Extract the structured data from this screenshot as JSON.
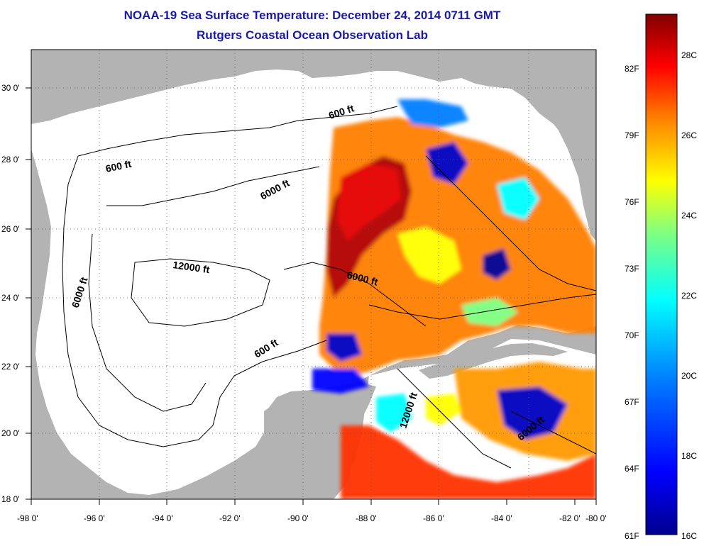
{
  "title": {
    "line1": "NOAA-19 Sea Surface Temperature:  December 24, 2014 0711 GMT",
    "line2": "Rutgers Coastal Ocean Observation Lab"
  },
  "map": {
    "lon_labels": [
      "-98 0'",
      "-96 0'",
      "-94 0'",
      "-92 0'",
      "-90 0'",
      "-88 0'",
      "-86 0'",
      "-84 0'",
      "-82 0'",
      "-80 0'"
    ],
    "lat_labels": [
      "30 0'",
      "28 0'",
      "26 0'",
      "24 0'",
      "22 0'",
      "20 0'",
      "18 0'"
    ],
    "contour_labels": [
      {
        "id": "c600-north",
        "text": "600 ft"
      },
      {
        "id": "c600-west",
        "text": "600 ft"
      },
      {
        "id": "c6000-mid",
        "text": "6000 ft"
      },
      {
        "id": "c12000",
        "text": "12000 ft"
      },
      {
        "id": "c6000-east",
        "text": "6000 ft"
      },
      {
        "id": "c6000-west",
        "text": "6000 ft"
      },
      {
        "id": "c600-south",
        "text": "600 ft"
      },
      {
        "id": "c12000-south",
        "text": "12000 ft"
      },
      {
        "id": "c6000-caribbean",
        "text": "6000 ft"
      }
    ],
    "colors": {
      "land": "#b3b3b3",
      "water": "#ffffff"
    }
  },
  "colorbar": {
    "fahrenheit": [
      "82F",
      "79F",
      "76F",
      "73F",
      "70F",
      "67F",
      "64F",
      "61F"
    ],
    "celsius": [
      "28C",
      "26C",
      "24C",
      "22C",
      "20C",
      "18C",
      "16C"
    ],
    "stops": [
      "#00008f",
      "#0000ff",
      "#007fff",
      "#00ffff",
      "#7fff7f",
      "#ffff00",
      "#ff7f00",
      "#ff0000",
      "#800000"
    ]
  }
}
